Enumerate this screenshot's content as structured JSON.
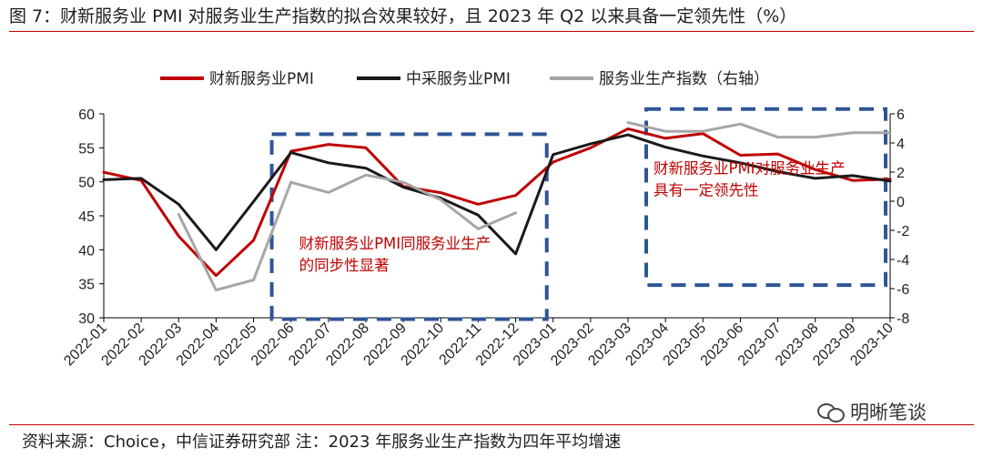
{
  "figure": {
    "title": "图 7：财新服务业 PMI 对服务业生产指数的拟合效果较好，且 2023 年 Q2 以来具备一定领先性（%）",
    "footnote": "资料来源：Choice，中信证券研究部 注：2023 年服务业生产指数为四年平均增速",
    "watermark": "明晰笔谈",
    "watermark_icon": "wechat-icon"
  },
  "chart_data": {
    "type": "line",
    "x": [
      "2022-01",
      "2022-02",
      "2022-03",
      "2022-04",
      "2022-05",
      "2022-06",
      "2022-07",
      "2022-08",
      "2022-09",
      "2022-10",
      "2022-11",
      "2022-12",
      "2023-01",
      "2023-02",
      "2023-03",
      "2023-04",
      "2023-05",
      "2023-06",
      "2023-07",
      "2023-08",
      "2023-09",
      "2023-10"
    ],
    "ylim_left": [
      30,
      60
    ],
    "yticks_left": [
      30,
      35,
      40,
      45,
      50,
      55,
      60
    ],
    "ylim_right": [
      -8,
      6
    ],
    "yticks_right": [
      -8,
      -6,
      -4,
      -2,
      0,
      2,
      4,
      6
    ],
    "legend_position": "top",
    "grid": false,
    "series": [
      {
        "name": "财新服务业PMI",
        "axis": "left",
        "color": "#c00000",
        "values": [
          51.4,
          50.2,
          42.0,
          36.2,
          41.4,
          54.5,
          55.5,
          55.0,
          49.3,
          48.4,
          46.7,
          48.0,
          52.9,
          55.0,
          57.8,
          56.4,
          57.1,
          53.9,
          54.1,
          51.8,
          50.2,
          50.4
        ]
      },
      {
        "name": "中采服务业PMI",
        "axis": "left",
        "color": "#1a1a1a",
        "values": [
          50.3,
          50.5,
          46.7,
          40.0,
          47.1,
          54.3,
          52.8,
          52.0,
          49.2,
          47.6,
          45.1,
          39.4,
          54.0,
          55.6,
          56.9,
          55.1,
          53.8,
          52.8,
          51.5,
          50.5,
          50.9,
          50.1
        ]
      },
      {
        "name": "服务业生产指数（右轴）",
        "axis": "right",
        "color": "#a6a6a6",
        "values": [
          null,
          null,
          -0.9,
          -6.1,
          -5.4,
          1.3,
          0.6,
          1.8,
          1.3,
          0.1,
          -1.9,
          -0.8,
          null,
          null,
          5.4,
          4.8,
          4.8,
          5.3,
          4.4,
          4.4,
          4.7,
          4.7
        ]
      }
    ],
    "annotations": [
      {
        "id": "sync",
        "text_lines": [
          "财新服务业PMI同服务业生产",
          "的同步性显著"
        ],
        "box_x": [
          "2022-05",
          "2023-01"
        ],
        "box_y_left": [
          29.8,
          57.0
        ]
      },
      {
        "id": "lead",
        "text_lines": [
          "财新服务业PMI对服务业生产",
          "具有一定领先性"
        ],
        "box_x": [
          "2023-03",
          "2023-10"
        ],
        "box_y_left": [
          34.8,
          60.7
        ]
      }
    ],
    "annotation_color": "#2f5597"
  }
}
